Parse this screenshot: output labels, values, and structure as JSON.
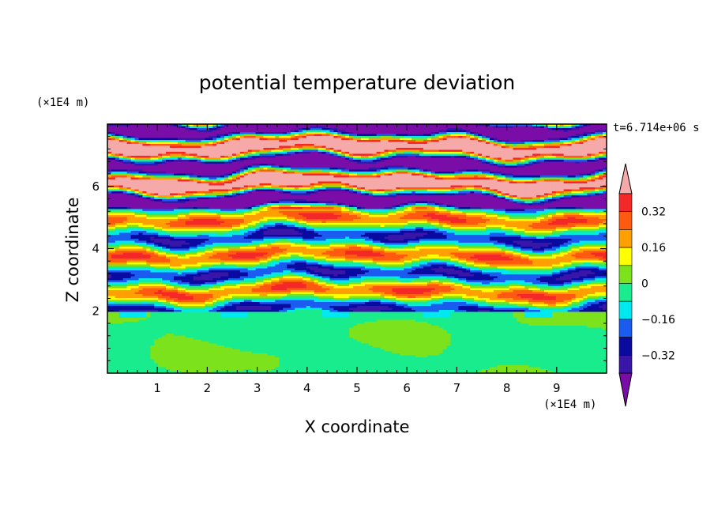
{
  "chart_data": {
    "type": "heatmap",
    "title": "potential temperature deviation",
    "xlabel": "X coordinate",
    "ylabel": "Z coordinate",
    "x_unit": "(×1E4 m)",
    "y_unit": "(×1E4 m)",
    "time_label": "t=6.714e+06 s",
    "xlim": [
      0,
      10
    ],
    "ylim": [
      0,
      8
    ],
    "x_ticks": [
      "1",
      "2",
      "3",
      "4",
      "5",
      "6",
      "7",
      "8",
      "9"
    ],
    "y_ticks": [
      "2",
      "4",
      "6"
    ],
    "colorbar": {
      "levels": [
        -0.4,
        -0.32,
        -0.24,
        -0.16,
        -0.08,
        0,
        0.08,
        0.16,
        0.24,
        0.32,
        0.4
      ],
      "tick_labels": [
        "0.32",
        "0.16",
        "0",
        "−0.16",
        "−0.32"
      ],
      "colors": [
        "#7a0ca8",
        "#3a16a8",
        "#0a0aa0",
        "#1a5cf0",
        "#00e8f0",
        "#18ec8c",
        "#7ce21c",
        "#ffff00",
        "#ffa000",
        "#ff5a10",
        "#f52828",
        "#f5a9a9"
      ],
      "extend": "both"
    },
    "description_regions": {
      "lower_layer_z_range": [
        0,
        2
      ],
      "lower_layer_dominant_values": [
        0,
        0.08
      ],
      "upper_layer_z_range": [
        5.5,
        8
      ],
      "upper_layer_dominant_values": [
        -0.4,
        0.4
      ]
    }
  }
}
